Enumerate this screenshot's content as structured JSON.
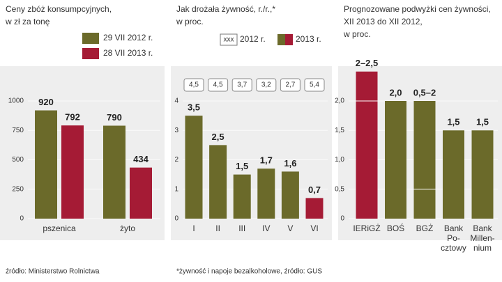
{
  "chart_data": [
    {
      "type": "bar",
      "title": [
        "Ceny zbóż konsumpcyjnych,",
        "w zł za tonę"
      ],
      "categories": [
        [
          "pszenica"
        ],
        [
          "żyto"
        ]
      ],
      "series": [
        {
          "name": "29 VII 2012 r.",
          "color": "#6b6a2a",
          "values": [
            920,
            790
          ]
        },
        {
          "name": "28 VII 2013 r.",
          "color": "#a51b35",
          "values": [
            792,
            434
          ]
        }
      ],
      "ylim": [
        0,
        1000
      ],
      "yticks": [
        0,
        250,
        500,
        750,
        1000
      ],
      "note": "źródło: Ministerstwo Rolnictwa"
    },
    {
      "type": "bar",
      "title": [
        "Jak drożała żywność, r./r.,*",
        "w proc."
      ],
      "categories": [
        [
          "I"
        ],
        [
          "II"
        ],
        [
          "III"
        ],
        [
          "IV"
        ],
        [
          "V"
        ],
        [
          "VI"
        ]
      ],
      "series": [
        {
          "name": "2012 r.",
          "legend_sample": "xxx",
          "style": "boxes",
          "values": [
            4.5,
            4.5,
            3.7,
            3.2,
            2.7,
            5.4
          ],
          "value_labels": [
            "4,5",
            "4,5",
            "3,7",
            "3,2",
            "2,7",
            "5,4"
          ]
        },
        {
          "name": "2013 r.",
          "colors": [
            "#6b6a2a",
            "#6b6a2a",
            "#6b6a2a",
            "#6b6a2a",
            "#6b6a2a",
            "#a51b35"
          ],
          "values": [
            3.5,
            2.5,
            1.5,
            1.7,
            1.6,
            0.7
          ],
          "value_labels": [
            "3,5",
            "2,5",
            "1,5",
            "1,7",
            "1,6",
            "0,7"
          ]
        }
      ],
      "ylim": [
        0,
        4
      ],
      "yticks": [
        0,
        1,
        2,
        3,
        4
      ],
      "note": "*żywność i napoje bezalkoholowe, źródło: GUS"
    },
    {
      "type": "range_bar",
      "title": [
        "Prognozowane podwyżki cen żywności,",
        "XII 2013 do XII 2012,",
        "w proc."
      ],
      "categories": [
        [
          "IERiGŻ"
        ],
        [
          "BOŚ"
        ],
        [
          "BGŻ"
        ],
        [
          "Bank",
          "Po-",
          "cztowy"
        ],
        [
          "Bank",
          "Millen-",
          "nium"
        ]
      ],
      "series": [
        {
          "colors": [
            "#a51b35",
            "#6b6a2a",
            "#6b6a2a",
            "#6b6a2a",
            "#6b6a2a"
          ],
          "low": [
            2,
            null,
            0.5,
            null,
            null
          ],
          "values": [
            2.5,
            2.0,
            2,
            1.5,
            1.5
          ],
          "value_labels": [
            "2–2,5",
            "2,0",
            "0,5–2",
            "1,5",
            "1,5"
          ]
        }
      ],
      "ylim": [
        0,
        2.5
      ],
      "yticks": [
        0,
        {
          "value": 0.5,
          "label": "0,5"
        },
        {
          "value": 1,
          "label": "1,0"
        },
        {
          "value": 1.5,
          "label": "1,5"
        },
        {
          "value": 2,
          "label": "2,0"
        }
      ]
    }
  ]
}
